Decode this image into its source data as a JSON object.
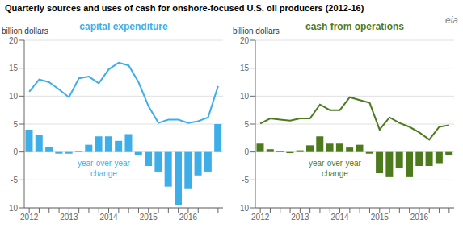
{
  "chart_data": [
    {
      "type": "bar",
      "title": "Quarterly sources  and uses  of cash for onshore-focused  U.S. oil producers (2012-16)",
      "subtitle": "capital expenditure",
      "y_label": "billion dollars",
      "categories": [
        "2012",
        null,
        null,
        null,
        "2013",
        null,
        null,
        null,
        "2014",
        null,
        null,
        null,
        "2015",
        null,
        null,
        null,
        "2016",
        null,
        null,
        null
      ],
      "series": [
        {
          "type": "bar",
          "color": "#3daee8",
          "values": [
            4.0,
            3.0,
            0.8,
            -0.3,
            -0.3,
            0.1,
            1.3,
            2.8,
            2.8,
            2.0,
            3.2,
            -0.5,
            -2.5,
            -3.5,
            -6.2,
            -9.5,
            -6.5,
            -4.2,
            -3.5,
            5.0
          ]
        },
        {
          "type": "line",
          "color": "#3daee8",
          "values": [
            10.8,
            13.0,
            12.5,
            11.2,
            9.8,
            13.2,
            13.5,
            12.3,
            14.8,
            16.0,
            15.5,
            12.5,
            8.2,
            5.2,
            5.8,
            5.8,
            5.2,
            5.5,
            6.2,
            11.8
          ]
        }
      ],
      "ylim": [
        -10,
        20
      ],
      "yticks": [
        -10,
        -5,
        0,
        5,
        10,
        15,
        20
      ],
      "grid": true,
      "annotations": [
        "year-over-year\nchange"
      ]
    },
    {
      "type": "bar",
      "subtitle": "cash from operations",
      "y_label": "billion dollars",
      "categories": [
        "2012",
        null,
        null,
        null,
        "2013",
        null,
        null,
        null,
        "2014",
        null,
        null,
        null,
        "2015",
        null,
        null,
        null,
        "2016",
        null,
        null,
        null
      ],
      "series": [
        {
          "type": "bar",
          "color": "#4e7a1e",
          "values": [
            1.5,
            0.5,
            0.2,
            -0.2,
            0.3,
            1.2,
            2.8,
            1.5,
            1.5,
            0.8,
            1.3,
            -0.3,
            -3.8,
            -4.5,
            -2.8,
            -4.5,
            -2.5,
            -2.5,
            -2.0,
            -0.5
          ]
        },
        {
          "type": "line",
          "color": "#4e7a1e",
          "values": [
            5.1,
            6.0,
            5.8,
            5.6,
            6.0,
            6.0,
            8.5,
            7.5,
            7.5,
            9.8,
            9.3,
            8.8,
            4.0,
            6.2,
            5.2,
            4.5,
            3.5,
            2.2,
            4.5,
            4.8
          ]
        }
      ],
      "ylim": [
        -10,
        20
      ],
      "yticks": [
        -10,
        -5,
        0,
        5,
        10,
        15,
        20
      ],
      "grid": true,
      "annotations": [
        "year-over-year\nchange",
        "eia"
      ]
    }
  ]
}
